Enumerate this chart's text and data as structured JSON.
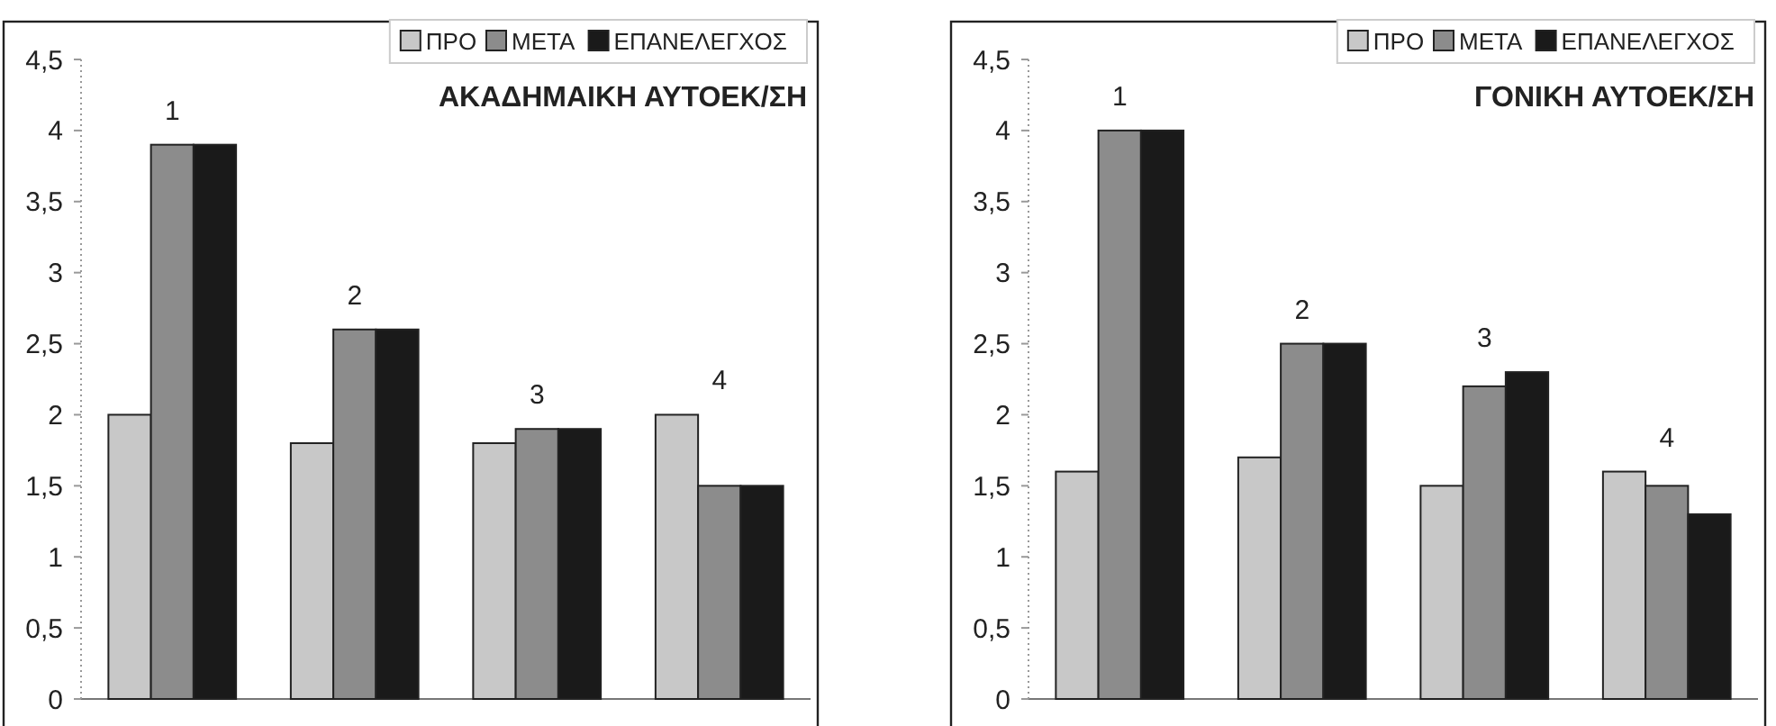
{
  "chart_data": [
    {
      "type": "bar",
      "title": "ΑΚΑΔΗΜΑΙΚΗ ΑΥΤΟΕΚ/ΣΗ",
      "categories": [
        null,
        null,
        null,
        null
      ],
      "annotations": [
        "1",
        "2",
        "3",
        "4"
      ],
      "series": [
        {
          "name": "ΠΡΟ",
          "color": "#c8c8c8",
          "values": [
            2,
            1.8,
            1.8,
            2
          ]
        },
        {
          "name": "ΜΕΤΑ",
          "color": "#8c8c8c",
          "values": [
            3.9,
            2.6,
            1.9,
            1.5
          ]
        },
        {
          "name": "ΕΠΑΝΕΛΕΓΧΟΣ",
          "color": "#1a1a1a",
          "values": [
            3.9,
            2.6,
            1.9,
            1.5
          ]
        }
      ],
      "ylim": [
        0,
        4.5
      ],
      "yticks": [
        0,
        {
          "value": 0.5,
          "label": "0,5"
        },
        1,
        {
          "value": 1.5,
          "label": "1,5"
        },
        2,
        {
          "value": 2.5,
          "label": "2,5"
        },
        3,
        {
          "value": 3.5,
          "label": "3,5"
        },
        4,
        {
          "value": 4.5,
          "label": "4,5"
        }
      ],
      "legend": "top right",
      "tick_labels": "y"
    },
    {
      "type": "bar",
      "title": "ΓΟΝΙΚΗ ΑΥΤΟΕΚ/ΣΗ",
      "categories": [
        null,
        null,
        null,
        null
      ],
      "annotations": [
        "1",
        "2",
        "3",
        "4"
      ],
      "series": [
        {
          "name": "ΠΡΟ",
          "color": "#c8c8c8",
          "values": [
            1.6,
            1.7,
            1.5,
            1.6
          ]
        },
        {
          "name": "ΜΕΤΑ",
          "color": "#8c8c8c",
          "values": [
            4,
            2.5,
            2.2,
            1.5
          ]
        },
        {
          "name": "ΕΠΑΝΕΛΕΓΧΟΣ",
          "color": "#1a1a1a",
          "values": [
            4,
            2.5,
            2.3,
            1.3
          ]
        }
      ],
      "ylim": [
        0,
        4.5
      ],
      "yticks": [
        0,
        {
          "value": 0.5,
          "label": "0,5"
        },
        1,
        {
          "value": 1.5,
          "label": "1,5"
        },
        2,
        {
          "value": 2.5,
          "label": "2,5"
        },
        3,
        {
          "value": 3.5,
          "label": "3,5"
        },
        4,
        {
          "value": 4.5,
          "label": "4,5"
        }
      ],
      "legend": "top right",
      "tick_labels": "y"
    }
  ]
}
